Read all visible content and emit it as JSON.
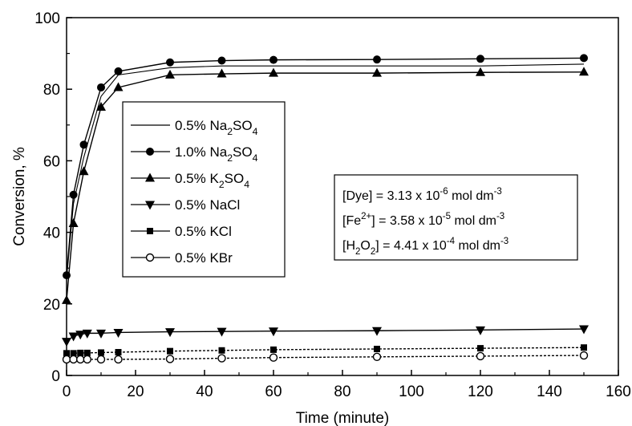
{
  "chart_data": {
    "type": "line",
    "title": "",
    "xlabel": "Time (minute)",
    "ylabel": "Conversion, %",
    "xlim": [
      0,
      160
    ],
    "ylim": [
      0,
      100
    ],
    "x_ticks": [
      "0",
      "20",
      "40",
      "60",
      "80",
      "100",
      "120",
      "140",
      "160"
    ],
    "y_ticks": [
      "0",
      "20",
      "40",
      "60",
      "80",
      "100"
    ],
    "grid": false,
    "legend_position": "center-left",
    "series": [
      {
        "name": "0.5% Na2SO4",
        "name_parts": [
          {
            "t": "0.5% Na"
          },
          {
            "t": "2",
            "sub": true
          },
          {
            "t": "SO"
          },
          {
            "t": "4",
            "sub": true
          }
        ],
        "marker": "none",
        "x": [
          0,
          2,
          5,
          10,
          15,
          30,
          45,
          60,
          90,
          120,
          150
        ],
        "y": [
          27,
          48,
          61,
          78,
          84,
          86,
          86.5,
          86.5,
          86.5,
          86.5,
          87
        ]
      },
      {
        "name": "1.0% Na2SO4",
        "name_parts": [
          {
            "t": "1.0% Na"
          },
          {
            "t": "2",
            "sub": true
          },
          {
            "t": "SO"
          },
          {
            "t": "4",
            "sub": true
          }
        ],
        "marker": "circle-filled",
        "x": [
          0,
          2,
          5,
          10,
          15,
          30,
          45,
          60,
          90,
          120,
          150
        ],
        "y": [
          28,
          50.5,
          64.5,
          80.5,
          85,
          87.5,
          88,
          88.2,
          88.3,
          88.5,
          88.7
        ]
      },
      {
        "name": "0.5% K2SO4",
        "name_parts": [
          {
            "t": "0.5% K"
          },
          {
            "t": "2",
            "sub": true
          },
          {
            "t": "SO"
          },
          {
            "t": "4",
            "sub": true
          }
        ],
        "marker": "triangle-up",
        "x": [
          0,
          2,
          5,
          10,
          15,
          30,
          45,
          60,
          90,
          120,
          150
        ],
        "y": [
          21,
          42.5,
          57,
          75,
          80.5,
          84,
          84.3,
          84.5,
          84.5,
          84.7,
          84.8
        ]
      },
      {
        "name": "0.5% NaCl",
        "name_parts": [
          {
            "t": "0.5% NaCl"
          }
        ],
        "marker": "triangle-down",
        "x": [
          0,
          2,
          4,
          6,
          10,
          15,
          30,
          45,
          60,
          90,
          120,
          150
        ],
        "y": [
          9.5,
          11,
          11.5,
          11.8,
          11.8,
          12,
          12.2,
          12.3,
          12.4,
          12.5,
          12.7,
          13
        ]
      },
      {
        "name": "0.5% KCl",
        "name_parts": [
          {
            "t": "0.5% KCl"
          }
        ],
        "marker": "square",
        "x": [
          0,
          2,
          4,
          6,
          10,
          15,
          30,
          45,
          60,
          90,
          120,
          150
        ],
        "y": [
          6.2,
          6.2,
          6.3,
          6.3,
          6.4,
          6.5,
          6.8,
          7,
          7.2,
          7.4,
          7.6,
          7.8
        ]
      },
      {
        "name": "0.5% KBr",
        "name_parts": [
          {
            "t": "0.5% KBr"
          }
        ],
        "marker": "circle-open",
        "x": [
          0,
          2,
          4,
          6,
          10,
          15,
          30,
          45,
          60,
          90,
          120,
          150
        ],
        "y": [
          4.5,
          4.5,
          4.5,
          4.5,
          4.5,
          4.5,
          4.6,
          4.8,
          5,
          5.2,
          5.4,
          5.6
        ]
      }
    ],
    "annotation": {
      "lines": [
        [
          {
            "t": "[Dye] = 3.13 x 10"
          },
          {
            "t": "-6",
            "sup": true
          },
          {
            "t": " mol dm"
          },
          {
            "t": "-3",
            "sup": true
          }
        ],
        [
          {
            "t": "[Fe"
          },
          {
            "t": "2+",
            "sup": true
          },
          {
            "t": "] = 3.58 x 10"
          },
          {
            "t": "-5",
            "sup": true
          },
          {
            "t": " mol dm"
          },
          {
            "t": "-3",
            "sup": true
          }
        ],
        [
          {
            "t": "[H"
          },
          {
            "t": "2",
            "sub": true
          },
          {
            "t": "O"
          },
          {
            "t": "2",
            "sub": true
          },
          {
            "t": "] = 4.41 x 10"
          },
          {
            "t": "-4",
            "sup": true
          },
          {
            "t": " mol dm"
          },
          {
            "t": "-3",
            "sup": true
          }
        ]
      ]
    }
  }
}
